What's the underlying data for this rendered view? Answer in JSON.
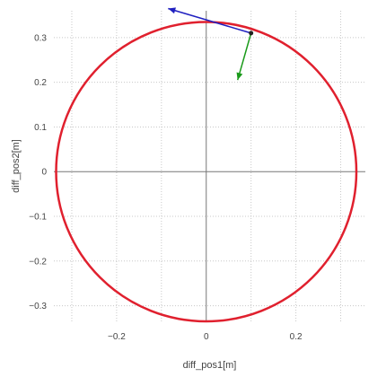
{
  "chart_data": {
    "type": "scatter",
    "title": "",
    "xlabel": "diff_pos1[m]",
    "ylabel": "diff_pos2[m]",
    "xlim": [
      -0.34,
      0.355
    ],
    "ylim": [
      -0.335,
      0.36
    ],
    "x_ticks": [
      {
        "value": -0.2,
        "label": "−0.2"
      },
      {
        "value": 0,
        "label": "0"
      },
      {
        "value": 0.2,
        "label": "0.2"
      }
    ],
    "y_ticks": [
      {
        "value": -0.3,
        "label": "−0.3"
      },
      {
        "value": -0.2,
        "label": "−0.2"
      },
      {
        "value": -0.1,
        "label": "−0.1"
      },
      {
        "value": 0,
        "label": "0"
      },
      {
        "value": 0.1,
        "label": "0.1"
      },
      {
        "value": 0.2,
        "label": "0.2"
      },
      {
        "value": 0.3,
        "label": "0.3"
      }
    ],
    "grid": true,
    "zero_lines": true,
    "series": [
      {
        "kind": "circle",
        "center": [
          0,
          0
        ],
        "radius": 0.335,
        "color": "#e0202e"
      },
      {
        "kind": "point",
        "x": 0.1,
        "y": 0.31,
        "color": "#222222"
      },
      {
        "kind": "arrow",
        "from": [
          0.1,
          0.31
        ],
        "to": [
          -0.085,
          0.365
        ],
        "color": "#2020c0"
      },
      {
        "kind": "arrow",
        "from": [
          0.1,
          0.31
        ],
        "to": [
          0.07,
          0.205
        ],
        "color": "#1a9a1a"
      }
    ]
  }
}
